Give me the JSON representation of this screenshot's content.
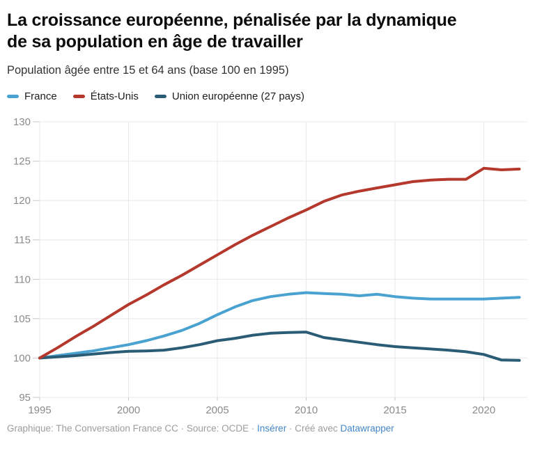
{
  "header": {
    "title_lines": [
      "La croissance européenne, pénalisée par la dynamique",
      "de sa population en âge de travailler"
    ],
    "subtitle": "Population âgée entre 15 et 64 ans (base 100 en 1995)"
  },
  "legend": {
    "items": [
      {
        "label": "France",
        "color": "#4aa2d0",
        "slug": "france"
      },
      {
        "label": "États-Unis",
        "color": "#b5382c",
        "slug": "etats-unis"
      },
      {
        "label": "Union européenne (27 pays)",
        "color": "#2b5c75",
        "slug": "union-europeenne"
      }
    ]
  },
  "chart_data": {
    "type": "line",
    "title": "La croissance européenne, pénalisée par la dynamique de sa population en âge de travailler",
    "subtitle": "Population âgée entre 15 et 64 ans (base 100 en 1995)",
    "x": [
      1995,
      1996,
      1997,
      1998,
      1999,
      2000,
      2001,
      2002,
      2003,
      2004,
      2005,
      2006,
      2007,
      2008,
      2009,
      2010,
      2011,
      2012,
      2013,
      2014,
      2015,
      2016,
      2017,
      2018,
      2019,
      2020,
      2021,
      2022
    ],
    "series": [
      {
        "name": "France",
        "color": "#4aa2d0",
        "values": [
          100,
          100.3,
          100.6,
          100.9,
          101.3,
          101.7,
          102.2,
          102.8,
          103.5,
          104.4,
          105.5,
          106.5,
          107.3,
          107.8,
          108.1,
          108.3,
          108.2,
          108.1,
          107.9,
          108.1,
          107.8,
          107.6,
          107.5,
          107.5,
          107.5,
          107.5,
          107.6,
          107.7
        ]
      },
      {
        "name": "États-Unis",
        "color": "#b5382c",
        "values": [
          100,
          101.3,
          102.7,
          104.0,
          105.4,
          106.8,
          108.0,
          109.3,
          110.5,
          111.8,
          113.1,
          114.4,
          115.6,
          116.7,
          117.8,
          118.8,
          119.9,
          120.7,
          121.2,
          121.6,
          122.0,
          122.4,
          122.6,
          122.7,
          122.7,
          124.1,
          123.9,
          124.0
        ]
      },
      {
        "name": "Union européenne (27 pays)",
        "color": "#2b5c75",
        "values": [
          100,
          100.15,
          100.3,
          100.5,
          100.7,
          100.85,
          100.9,
          101.0,
          101.3,
          101.7,
          102.2,
          102.5,
          102.9,
          103.15,
          103.25,
          103.3,
          102.6,
          102.3,
          102.0,
          101.7,
          101.45,
          101.3,
          101.15,
          101.0,
          100.8,
          100.45,
          99.75,
          99.7
        ]
      }
    ],
    "ylim": [
      95,
      130
    ],
    "yticks": [
      95,
      100,
      105,
      110,
      115,
      120,
      125,
      130
    ],
    "xticks": [
      1995,
      2000,
      2005,
      2010,
      2015,
      2020
    ],
    "xlabel": "",
    "ylabel": "",
    "grid": true,
    "legend_position": "top"
  },
  "footer": {
    "credit": "Graphique: The Conversation France CC · Source: OCDE ·",
    "embed_link": "Insérer",
    "separator": " · ",
    "created_with": "Créé avec",
    "tool_link": "Datawrapper"
  }
}
